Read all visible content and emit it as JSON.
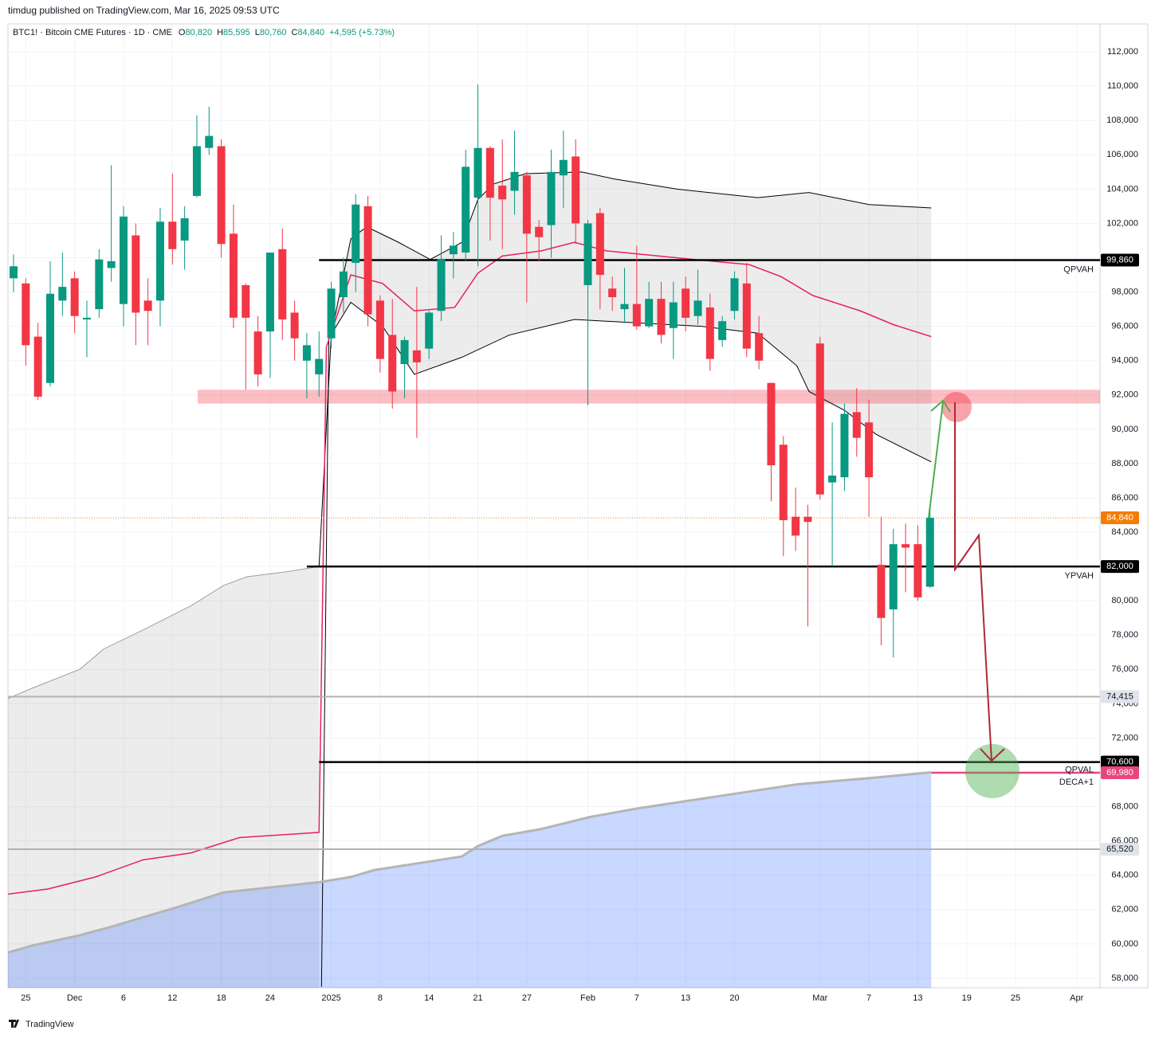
{
  "header": {
    "publisher": "timdug published on TradingView.com, Mar 16, 2025 09:53 UTC",
    "symbol": "BTC1! · Bitcoin CME Futures · 1D · CME",
    "o_label": "O",
    "open": "80,820",
    "h_label": "H",
    "high": "85,595",
    "l_label": "L",
    "low": "80,760",
    "c_label": "C",
    "close": "84,840",
    "change": "+4,595 (+5.73%)",
    "brand": "TradingView"
  },
  "chart_data": {
    "type": "candlestick",
    "categories": [
      null,
      "25",
      null,
      null,
      null,
      "Dec",
      null,
      null,
      null,
      "6",
      null,
      null,
      null,
      "12",
      null,
      null,
      null,
      "18",
      null,
      null,
      null,
      "24",
      null,
      null,
      null,
      null,
      "2025",
      null,
      null,
      null,
      "8",
      null,
      null,
      null,
      "14",
      null,
      null,
      null,
      "21",
      null,
      null,
      null,
      "27",
      null,
      null,
      null,
      null,
      "Feb",
      null,
      null,
      null,
      "7",
      null,
      null,
      null,
      "13",
      null,
      null,
      null,
      "20",
      null,
      null,
      null,
      null,
      null,
      null,
      "Mar",
      null,
      null,
      null,
      "7",
      null,
      null,
      null,
      "13",
      null,
      null,
      null,
      "19",
      null,
      null,
      null,
      "25",
      null,
      null,
      null,
      null,
      "Apr",
      null
    ],
    "open": [
      98800,
      98500,
      95400,
      92700,
      97500,
      98800,
      96400,
      97000,
      99400,
      97300,
      101300,
      97500,
      97500,
      102100,
      101000,
      103600,
      106400,
      106500,
      101400,
      98400,
      95700,
      95700,
      100500,
      96800,
      94000,
      93200,
      95300,
      97700,
      99700,
      103000,
      97500,
      95500,
      93800,
      94600,
      94700,
      96900,
      100200,
      100300,
      103500,
      106400,
      104200,
      103900,
      104800,
      101800,
      101900,
      104800,
      105900,
      98400,
      102600,
      98200,
      97000,
      97300,
      96000,
      97600,
      95900,
      98200,
      96600,
      97100,
      95200,
      96900,
      98500,
      95600,
      92700,
      89100,
      84900,
      84900,
      95000,
      86900,
      87200,
      91000,
      90400,
      82100,
      79500,
      83300,
      83300,
      80820,
      null,
      null,
      null,
      null,
      null,
      null,
      null,
      null,
      null,
      null,
      null,
      null,
      null
    ],
    "high": [
      100200,
      98800,
      96200,
      99800,
      100300,
      99200,
      97500,
      100500,
      105400,
      103000,
      102000,
      98800,
      102900,
      104900,
      103000,
      108300,
      108800,
      106900,
      103100,
      98500,
      96600,
      100300,
      101700,
      97500,
      95600,
      95700,
      98600,
      100000,
      103700,
      103600,
      97800,
      97600,
      95400,
      98300,
      96900,
      101300,
      101500,
      106300,
      110100,
      106500,
      106900,
      107400,
      105000,
      102200,
      106300,
      107400,
      106900,
      102200,
      102900,
      98900,
      99400,
      100700,
      98600,
      98600,
      98600,
      98900,
      99300,
      97900,
      96600,
      99200,
      99700,
      96600,
      92700,
      89600,
      86600,
      85600,
      95400,
      90400,
      91500,
      92400,
      91700,
      84900,
      84200,
      84500,
      84400,
      85595,
      null,
      null,
      null,
      null,
      null,
      null,
      null,
      null,
      null,
      null,
      null,
      null,
      null
    ],
    "low": [
      98000,
      93700,
      91700,
      92500,
      96600,
      95600,
      94200,
      96500,
      98600,
      96000,
      94900,
      94900,
      96000,
      99600,
      99300,
      103500,
      106000,
      100000,
      95900,
      92300,
      92500,
      93000,
      95200,
      94000,
      91800,
      91900,
      94700,
      96800,
      98000,
      96000,
      93300,
      91200,
      91800,
      89500,
      94100,
      96300,
      98800,
      99800,
      99500,
      101000,
      100500,
      102500,
      97400,
      99800,
      100000,
      102900,
      100800,
      91400,
      97000,
      96900,
      96200,
      95800,
      95900,
      95000,
      94100,
      95700,
      96100,
      93400,
      94800,
      96400,
      94200,
      93500,
      85800,
      82600,
      82900,
      78500,
      85900,
      82000,
      86400,
      88400,
      84900,
      77400,
      76700,
      80500,
      80000,
      80760,
      null,
      null,
      null,
      null,
      null,
      null,
      null,
      null,
      null,
      null,
      null,
      null,
      null
    ],
    "close": [
      99500,
      94900,
      91900,
      97900,
      98300,
      96600,
      96500,
      99900,
      99800,
      102400,
      96800,
      96900,
      102100,
      100500,
      102300,
      106500,
      107100,
      100800,
      96500,
      96500,
      93200,
      100300,
      96400,
      95300,
      94900,
      94100,
      98200,
      99200,
      103100,
      96700,
      94100,
      92200,
      95200,
      93900,
      96800,
      99900,
      100700,
      105300,
      106400,
      103500,
      103400,
      105000,
      101400,
      101200,
      105000,
      105700,
      102000,
      102000,
      99000,
      97700,
      97300,
      96000,
      97600,
      95500,
      97400,
      96500,
      97500,
      94100,
      96300,
      98800,
      94700,
      94000,
      87900,
      84700,
      83800,
      84600,
      86200,
      87300,
      90900,
      89500,
      87200,
      79000,
      83300,
      83100,
      80200,
      84840,
      null,
      null,
      null,
      null,
      null,
      null,
      null,
      null,
      null,
      null,
      null,
      null,
      null
    ],
    "up_color": "#089981",
    "down_color": "#f23645",
    "ylim": [
      57440,
      113630
    ],
    "yticks": [
      {
        "value": 58000,
        "label": "58,000"
      },
      {
        "value": 60000,
        "label": "60,000"
      },
      {
        "value": 62000,
        "label": "62,000"
      },
      {
        "value": 64000,
        "label": "64,000"
      },
      {
        "value": 66000,
        "label": "66,000"
      },
      {
        "value": 68000,
        "label": "68,000"
      },
      {
        "value": 70000,
        "label": "70,000"
      },
      {
        "value": 72000,
        "label": "72,000"
      },
      {
        "value": 74000,
        "label": "74,000"
      },
      {
        "value": 76000,
        "label": "76,000"
      },
      {
        "value": 78000,
        "label": "78,000"
      },
      {
        "value": 80000,
        "label": "80,000"
      },
      {
        "value": 82000,
        "label": "82,000"
      },
      {
        "value": 84000,
        "label": "84,000"
      },
      {
        "value": 86000,
        "label": "86,000"
      },
      {
        "value": 88000,
        "label": "88,000"
      },
      {
        "value": 90000,
        "label": "90,000"
      },
      {
        "value": 92000,
        "label": "92,000"
      },
      {
        "value": 94000,
        "label": "94,000"
      },
      {
        "value": 96000,
        "label": "96,000"
      },
      {
        "value": 98000,
        "label": "98,000"
      },
      {
        "value": 100000,
        "label": "100,000"
      },
      {
        "value": 102000,
        "label": "102,000"
      },
      {
        "value": 104000,
        "label": "104,000"
      },
      {
        "value": 106000,
        "label": "106,000"
      },
      {
        "value": 108000,
        "label": "108,000"
      },
      {
        "value": 110000,
        "label": "110,000"
      },
      {
        "value": 112000,
        "label": "112,000"
      }
    ],
    "grid": true,
    "overlays": [
      {
        "x": [
          -0.46,
          1.5,
          5.4,
          7.4,
          10.6,
          14.5,
          17.2,
          19.1,
          22.4,
          25.0
        ],
        "values": [
          74300,
          74900,
          76000,
          77200,
          78300,
          79700,
          80900,
          81400,
          81700,
          82000
        ],
        "color": "#9e9e9e",
        "width": 1,
        "fill": "bottom",
        "fill_color": "rgba(0,0,0,0.075)"
      },
      {
        "x": [
          25.0,
          26.0
        ],
        "values": [
          82000,
          95500
        ],
        "color": "#000000",
        "width": 1
      },
      {
        "x": [
          26.0,
          27.6,
          28.9,
          31.5,
          34.1,
          36.7,
          38.0,
          39.3,
          41.9,
          46.5,
          49.1,
          54.3,
          60.9,
          65.1,
          70.0,
          75.1
        ],
        "values": [
          95500,
          101100,
          101800,
          100900,
          99900,
          100900,
          103400,
          104300,
          104900,
          105000,
          104600,
          104000,
          103500,
          103800,
          103100,
          102900
        ],
        "color": "#000000",
        "width": 1,
        "fill": 4,
        "fill_color": "rgba(0,0,0,0.075)"
      },
      {
        "x": [
          25.2,
          25.8
        ],
        "values": [
          57500,
          95300
        ],
        "color": "#000000",
        "width": 1
      },
      {
        "x": [
          25.8,
          27.6,
          30.2,
          32.8,
          36.7,
          40.6,
          45.9,
          51.1,
          56.3,
          60.9,
          64.1,
          65.1,
          68.0,
          70.6,
          75.1
        ],
        "values": [
          95300,
          97400,
          96000,
          93200,
          94200,
          95500,
          96400,
          96200,
          96000,
          95600,
          93700,
          92200,
          91100,
          89700,
          88100
        ],
        "color": "#000000",
        "width": 1
      },
      {
        "x": [
          -0.46,
          2.8,
          6.7,
          10.6,
          14.5,
          18.5,
          25.0,
          25.6,
          27.6,
          30.2,
          32.8,
          36.1,
          38.0,
          40.0,
          43.2,
          45.9,
          48.5,
          55.6,
          60.2,
          62.8,
          65.4,
          69.3,
          72.0,
          75.1
        ],
        "values": [
          62900,
          63200,
          63900,
          64900,
          65300,
          66200,
          66500,
          94800,
          99000,
          98500,
          96900,
          97100,
          99100,
          100100,
          100400,
          100900,
          100400,
          99900,
          99600,
          98900,
          97800,
          96900,
          96100,
          95400
        ],
        "color": "#e91e63",
        "width": 1.5
      },
      {
        "x": [
          -0.46,
          1.5,
          5.4,
          8.0,
          13.2,
          17.2,
          25.0,
          27.6,
          29.5,
          36.7,
          38.0,
          40.0,
          43.2,
          47.2,
          51.1,
          57.6,
          64.1,
          70.6,
          75.1
        ],
        "values": [
          59500,
          59900,
          60500,
          61000,
          62100,
          63000,
          63600,
          63900,
          64300,
          65100,
          65700,
          66300,
          66700,
          67400,
          67900,
          68600,
          69300,
          69700,
          70000
        ],
        "color": "#b5b5b5",
        "width": 3,
        "fill": "bottom",
        "fill_color": "rgba(41,98,255,0.25)"
      }
    ],
    "zone": {
      "from": 91500,
      "to": 92300,
      "start": 15.07,
      "color": "rgba(242,54,69,0.32)"
    },
    "levels": [
      {
        "value": 99860,
        "label": "99,860",
        "text": "QPVAH",
        "color": "#000000",
        "from": 25.0,
        "width": 2.5
      },
      {
        "value": 82000,
        "label": "82,000",
        "text": "YPVAH",
        "color": "#000000",
        "from": 24.0,
        "width": 2.5
      },
      {
        "value": 74415,
        "label": "74,415",
        "color": "#b2b2b2",
        "from": -0.46,
        "width": 2
      },
      {
        "value": 70600,
        "label": "70,600",
        "text": "QPVAL",
        "color": "#000000",
        "from": 25.0,
        "width": 2.5
      },
      {
        "value": 69980,
        "label": "69,980",
        "text": "DECA+1",
        "color": "#e8457f",
        "from": 75.1,
        "width": 2.5
      },
      {
        "value": 65520,
        "label": "65,520",
        "color": "#b2b2b2",
        "from": -0.46,
        "width": 2
      }
    ],
    "last_price": {
      "value": 84840,
      "label": "84,840",
      "color": "#f57c00"
    }
  }
}
